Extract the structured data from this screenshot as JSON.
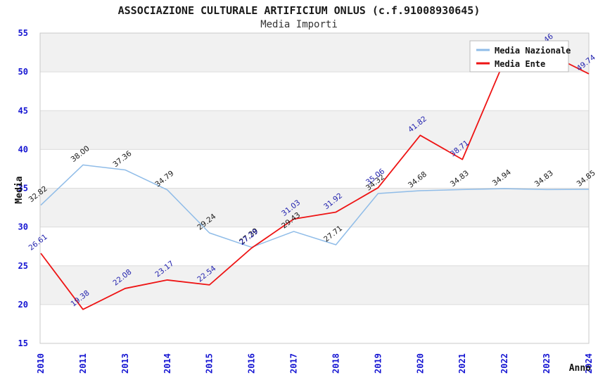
{
  "header": {
    "title": "ASSOCIAZIONE CULTURALE ARTIFICIUM ONLUS (c.f.91008930645)",
    "subtitle": "Media Importi"
  },
  "legend": {
    "position": "top-right",
    "items": [
      {
        "label": "Media Nazionale",
        "color": "#8FBCE8"
      },
      {
        "label": "Media Ente",
        "color": "#EE1414"
      }
    ]
  },
  "axes": {
    "y_title": "Media",
    "x_title": "Anno",
    "y_ticks": [
      "15",
      "20",
      "25",
      "30",
      "35",
      "40",
      "45",
      "50",
      "55"
    ],
    "x_ticks": [
      "2010",
      "2011",
      "2013",
      "2014",
      "2015",
      "2016",
      "2017",
      "2018",
      "2019",
      "2020",
      "2021",
      "2022",
      "2023",
      "2024"
    ],
    "tick_color": "#1414D2"
  },
  "chart_data": {
    "type": "line",
    "title": "ASSOCIAZIONE CULTURALE ARTIFICIUM ONLUS (c.f.91008930645)",
    "subtitle": "Media Importi",
    "xlabel": "Anno",
    "ylabel": "Media",
    "ylim": [
      15,
      55
    ],
    "y_tick_step": 5,
    "grid": "horizontal-bands",
    "legend_position": "top-right",
    "categories": [
      "2010",
      "2011",
      "2013",
      "2014",
      "2015",
      "2016",
      "2017",
      "2018",
      "2019",
      "2020",
      "2021",
      "2022",
      "2023",
      "2024"
    ],
    "series": [
      {
        "name": "Media Nazionale",
        "color": "#8FBCE8",
        "label_color": "#1a1a1a",
        "values": [
          32.82,
          38.0,
          37.36,
          34.79,
          29.24,
          27.39,
          29.43,
          27.71,
          34.32,
          34.68,
          34.83,
          34.94,
          34.83,
          34.85
        ]
      },
      {
        "name": "Media Ente",
        "color": "#EE1414",
        "label_color": "#2222AE",
        "values": [
          26.61,
          19.38,
          22.08,
          23.17,
          22.54,
          27.29,
          31.03,
          31.92,
          35.06,
          41.82,
          38.71,
          51.5,
          52.46,
          49.74
        ],
        "note": "2022 and 2023 labels partially hidden behind legend; 2022 value estimated from line slope"
      }
    ],
    "band_colors": [
      "#F1F1F1",
      "#FFFFFF"
    ],
    "gridline_color": "#DCDCDC",
    "border_color": "#C9C9C9"
  }
}
